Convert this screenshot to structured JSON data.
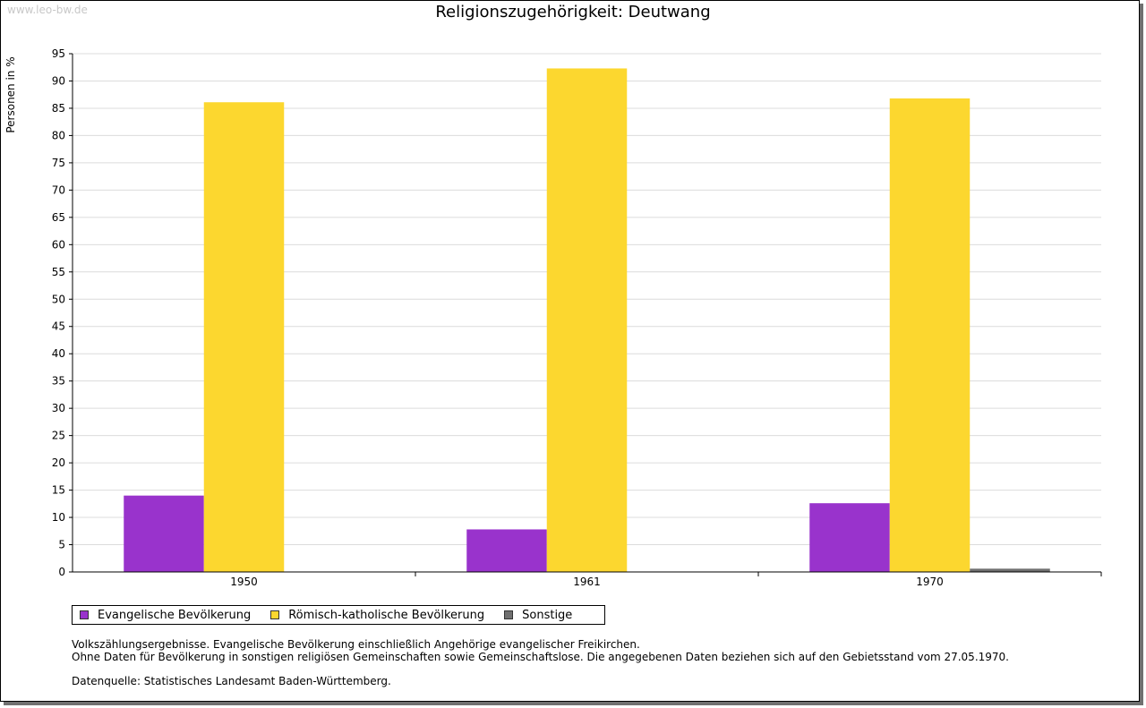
{
  "watermark": "www.leo-bw.de",
  "chart_data": {
    "type": "bar",
    "title": "Religionszugehörigkeit: Deutwang",
    "xlabel": "",
    "ylabel": "Personen in %",
    "ylim": [
      0,
      95
    ],
    "ytick_step": 5,
    "grid": true,
    "categories": [
      "1950",
      "1961",
      "1970"
    ],
    "series": [
      {
        "name": "Evangelische Bevölkerung",
        "color": "#9933cc",
        "values": [
          14.0,
          7.8,
          12.6
        ]
      },
      {
        "name": "Römisch-katholische Bevölkerung",
        "color": "#fcd72f",
        "values": [
          86.1,
          92.3,
          86.8
        ]
      },
      {
        "name": "Sonstige",
        "color": "#707070",
        "values": [
          0.0,
          0.0,
          0.6
        ]
      }
    ],
    "legend_position": "bottom-left"
  },
  "notes": {
    "line1": "Volkszählungsergebnisse. Evangelische Bevölkerung einschließlich Angehörige evangelischer Freikirchen.",
    "line2": "Ohne Daten für Bevölkerung in sonstigen religiösen Gemeinschaften sowie Gemeinschaftslose. Die angegebenen Daten beziehen sich auf den Gebietsstand vom 27.05.1970.",
    "source": "Datenquelle: Statistisches Landesamt Baden-Württemberg."
  }
}
